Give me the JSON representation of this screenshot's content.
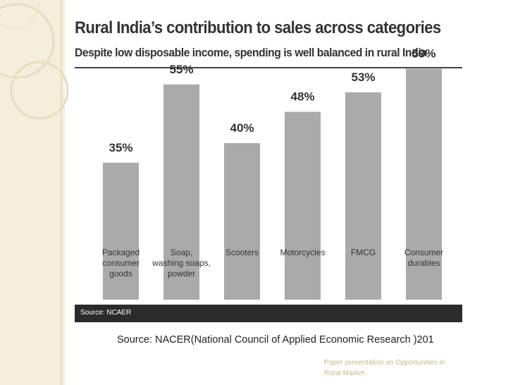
{
  "slide": {
    "footnote": "Source: NACER(National Council of Applied Economic Research )201",
    "caption": "Paper presentation on Opportunities in Rural Market"
  },
  "colors": {
    "bar": "#aaaaaa",
    "source_bar": "#2b2b2b",
    "side_panel": "#f6eedc"
  },
  "chart_data": {
    "type": "bar",
    "title": "Rural India’s contribution to sales across categories",
    "subtitle": "Despite low disposable income, spending is well balanced in rural India",
    "categories": [
      [
        "Packaged",
        "consumer",
        "goods"
      ],
      [
        "Soap,",
        "washing soaps,",
        "powder"
      ],
      [
        "Scooters"
      ],
      [
        "Motorcycles"
      ],
      [
        "FMCG"
      ],
      [
        "Consumer",
        "durables"
      ]
    ],
    "values": [
      35,
      55,
      40,
      48,
      53,
      59
    ],
    "value_labels": [
      "35%",
      "55%",
      "40%",
      "48%",
      "53%",
      "59%"
    ],
    "xlabel": "",
    "ylabel": "",
    "ylim": [
      0,
      60
    ],
    "grid": false,
    "source": "Source: NCAER"
  }
}
